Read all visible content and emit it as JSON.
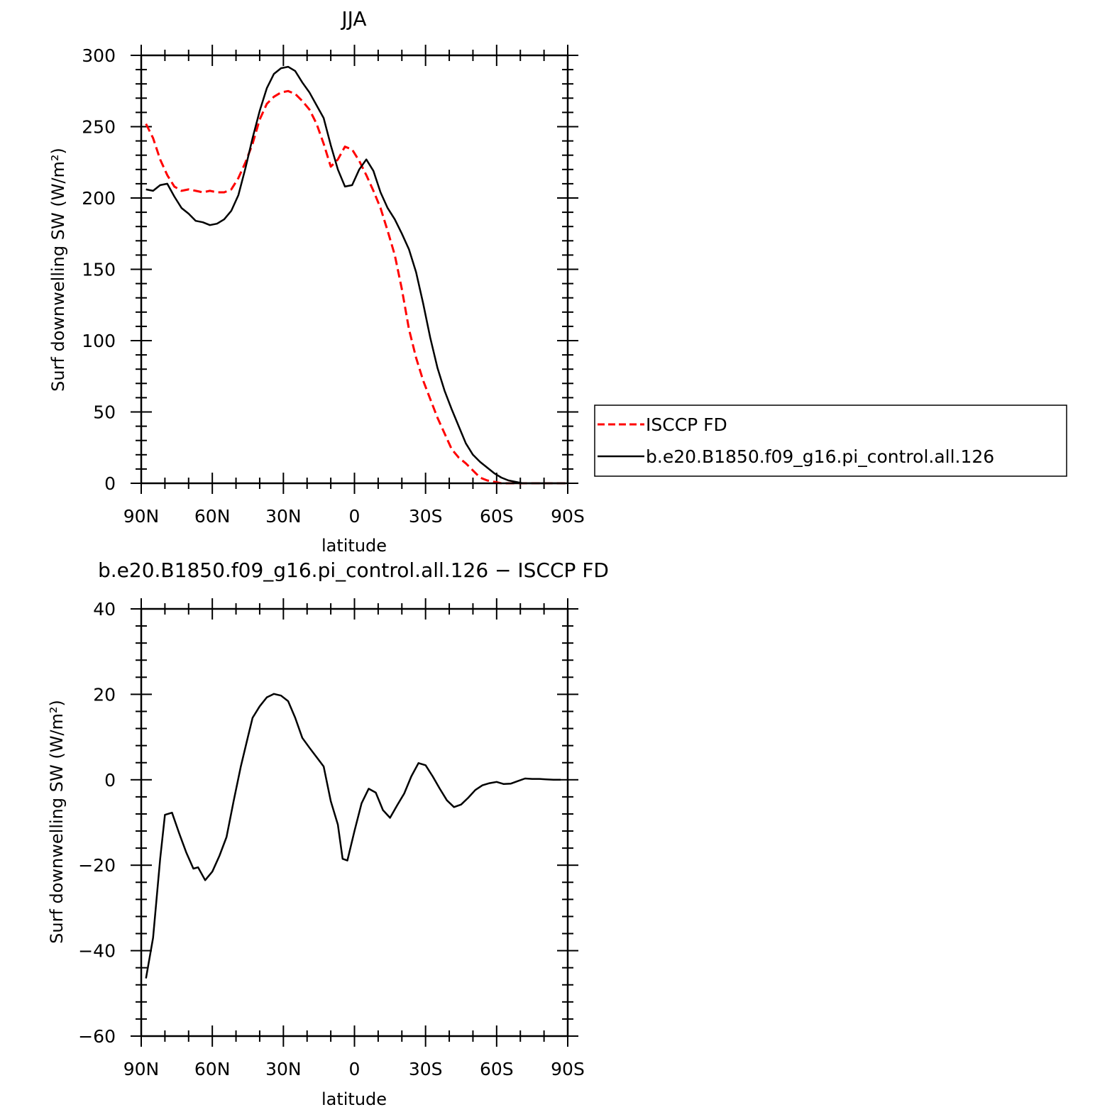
{
  "colors": {
    "model": "#000000",
    "obs": "#ff0000",
    "frame": "#000000"
  },
  "chart_data": [
    {
      "type": "line",
      "title": "JJA",
      "xlabel": "latitude",
      "ylabel": "Surf downwelling SW (W/m²)",
      "xlim": [
        90,
        -90
      ],
      "ylim": [
        0,
        300
      ],
      "xticks": [
        {
          "value": 90,
          "label": "90N"
        },
        {
          "value": 60,
          "label": "60N"
        },
        {
          "value": 30,
          "label": "30N"
        },
        {
          "value": 0,
          "label": "0"
        },
        {
          "value": -30,
          "label": "30S"
        },
        {
          "value": -60,
          "label": "60S"
        },
        {
          "value": -90,
          "label": "90S"
        }
      ],
      "yticks": [
        {
          "value": 0,
          "label": "0"
        },
        {
          "value": 50,
          "label": "50"
        },
        {
          "value": 100,
          "label": "100"
        },
        {
          "value": 150,
          "label": "150"
        },
        {
          "value": 200,
          "label": "200"
        },
        {
          "value": 250,
          "label": "250"
        },
        {
          "value": 300,
          "label": "300"
        }
      ],
      "legend_position": "right",
      "series": [
        {
          "name": "ISCCP FD",
          "style": "dashed",
          "color": "#ff0000",
          "x": [
            88,
            85,
            82,
            79,
            76,
            73,
            70,
            67,
            64,
            61,
            58,
            55,
            52,
            49,
            46,
            43,
            40,
            37,
            34,
            31,
            28,
            25,
            22,
            19,
            16,
            13,
            10,
            7,
            4,
            1,
            -2,
            -5,
            -8,
            -11,
            -14,
            -17,
            -20,
            -23,
            -26,
            -29,
            -32,
            -35,
            -38,
            -41,
            -44,
            -47,
            -50,
            -53,
            -56,
            -59,
            -62,
            -65,
            -68,
            -71,
            -74,
            -77,
            -80,
            -83,
            -86,
            -89
          ],
          "y": [
            252,
            242,
            227,
            216,
            208,
            205,
            206,
            205,
            204,
            205,
            204,
            204,
            206,
            214,
            225,
            238,
            255,
            266,
            271,
            274,
            275,
            273,
            268,
            262,
            252,
            238,
            222,
            227,
            236,
            234,
            226,
            216,
            205,
            193,
            177,
            160,
            136,
            108,
            88,
            72,
            59,
            46,
            35,
            24,
            18,
            14,
            9,
            4,
            2,
            1,
            0,
            0,
            0,
            0,
            0,
            0,
            0,
            0,
            0,
            0
          ]
        },
        {
          "name": "b.e20.B1850.f09_g16.pi_control.all.126",
          "style": "solid",
          "color": "#000000",
          "x": [
            88,
            85,
            82,
            79,
            76,
            73,
            70,
            67,
            64,
            61,
            58,
            55,
            52,
            49,
            46,
            43,
            40,
            37,
            34,
            31,
            28,
            25,
            22,
            19,
            16,
            13,
            10,
            7,
            4,
            1,
            -2,
            -5,
            -8,
            -11,
            -14,
            -17,
            -20,
            -23,
            -26,
            -29,
            -32,
            -35,
            -38,
            -41,
            -44,
            -47,
            -50,
            -53,
            -56,
            -59,
            -62,
            -65,
            -68,
            -71,
            -74,
            -77,
            -80,
            -83,
            -86,
            -89
          ],
          "y": [
            206,
            205,
            209,
            210,
            201,
            193,
            189,
            184,
            183,
            181,
            182,
            185,
            191,
            202,
            221,
            242,
            261,
            277,
            287,
            291,
            292,
            289,
            281,
            274,
            265,
            256,
            237,
            220,
            208,
            209,
            220,
            227,
            219,
            204,
            193,
            185,
            175,
            164,
            148,
            126,
            102,
            81,
            65,
            52,
            40,
            28,
            20,
            15,
            11,
            7,
            4,
            2,
            1,
            0,
            0,
            0,
            0,
            0,
            0,
            0
          ]
        }
      ]
    },
    {
      "type": "line",
      "title": "b.e20.B1850.f09_g16.pi_control.all.126 − ISCCP FD",
      "xlabel": "latitude",
      "ylabel": "Surf downwelling SW (W/m²)",
      "xlim": [
        90,
        -90
      ],
      "ylim": [
        -60,
        40
      ],
      "xticks": [
        {
          "value": 90,
          "label": "90N"
        },
        {
          "value": 60,
          "label": "60N"
        },
        {
          "value": 30,
          "label": "30N"
        },
        {
          "value": 0,
          "label": "0"
        },
        {
          "value": -30,
          "label": "30S"
        },
        {
          "value": -60,
          "label": "60S"
        },
        {
          "value": -90,
          "label": "90S"
        }
      ],
      "yticks": [
        {
          "value": -60,
          "label": "−60"
        },
        {
          "value": -40,
          "label": "−40"
        },
        {
          "value": -20,
          "label": "−20"
        },
        {
          "value": 0,
          "label": "0"
        },
        {
          "value": 20,
          "label": "20"
        },
        {
          "value": 40,
          "label": "40"
        }
      ],
      "series": [
        {
          "name": "",
          "style": "solid",
          "color": "#000000",
          "x": [
            88,
            85,
            82,
            80,
            77,
            74,
            71,
            68,
            66,
            63,
            60,
            57,
            54,
            51,
            48,
            45,
            43,
            40,
            37,
            34,
            31,
            28,
            25,
            22,
            19,
            16,
            13,
            10,
            7,
            5,
            3,
            0,
            -3,
            -6,
            -9,
            -12,
            -15,
            -18,
            -21,
            -24,
            -27,
            -30,
            -33,
            -36,
            -39,
            -42,
            -45,
            -48,
            -51,
            -54,
            -57,
            -60,
            -63,
            -66,
            -69,
            -72,
            -75,
            -78,
            -81,
            -84,
            -87
          ],
          "y": [
            -46.5,
            -37,
            -18.5,
            -8.2,
            -7.7,
            -12.5,
            -17,
            -20.8,
            -20.5,
            -23.5,
            -21.5,
            -17.8,
            -13.4,
            -5,
            3,
            10,
            14.5,
            17.2,
            19.3,
            20.1,
            19.7,
            18.4,
            14.5,
            9.8,
            7.5,
            5.3,
            3.1,
            -5,
            -10.5,
            -18.5,
            -18.9,
            -12,
            -5.5,
            -2.1,
            -3,
            -7.1,
            -8.9,
            -6,
            -3.2,
            0.8,
            3.9,
            3.4,
            0.8,
            -2.1,
            -4.8,
            -6.4,
            -5.8,
            -4.2,
            -2.4,
            -1.3,
            -0.8,
            -0.5,
            -1,
            -0.9,
            -0.3,
            0.3,
            0.2,
            0.2,
            0.1,
            0,
            0
          ]
        }
      ]
    }
  ]
}
